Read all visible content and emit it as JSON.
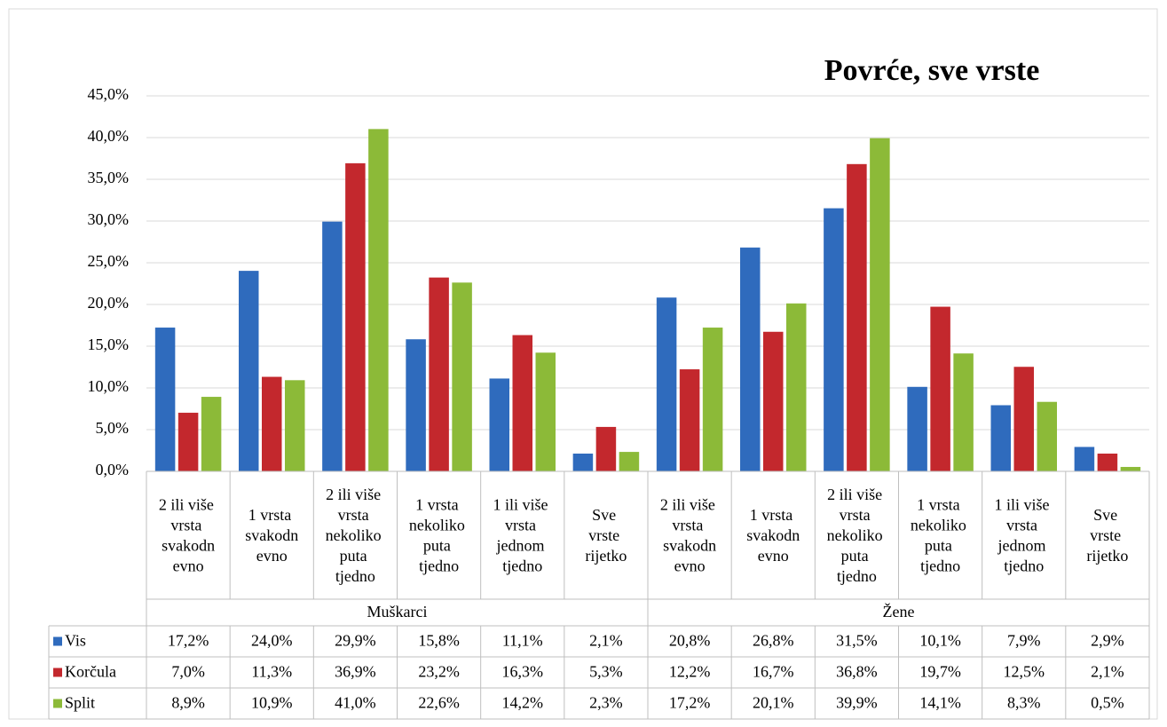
{
  "chart_data": {
    "type": "bar",
    "title": "Povrće, sve vrste",
    "categories": [
      "2 ili više vrsta svakodnevno",
      "1 vrsta svakodnevno",
      "2 ili više vrsta nekoliko puta tjedno",
      "1 vrsta nekoliko puta tjedno",
      "1 ili više vrsta jednom tjedno",
      "Sve vrste rijetko",
      "2 ili više vrsta svakodnevno",
      "1 vrsta svakodnevno",
      "2 ili više vrsta nekoliko puta tjedno",
      "1 vrsta nekoliko puta tjedno",
      "1 ili više vrsta jednom tjedno",
      "Sve vrste rijetko"
    ],
    "groups": [
      "Muškarci",
      "Žene"
    ],
    "series": [
      {
        "name": "Vis",
        "color": "#2f6bbd",
        "values": [
          17.2,
          24.0,
          29.9,
          15.8,
          11.1,
          2.1,
          20.8,
          26.8,
          31.5,
          10.1,
          7.9,
          2.9
        ],
        "value_labels": [
          "17,2%",
          "24,0%",
          "29,9%",
          "15,8%",
          "11,1%",
          "2,1%",
          "20,8%",
          "26,8%",
          "31,5%",
          "10,1%",
          "7,9%",
          "2,9%"
        ]
      },
      {
        "name": "Korčula",
        "color": "#c3282d",
        "values": [
          7.0,
          11.3,
          36.9,
          23.2,
          16.3,
          5.3,
          12.2,
          16.7,
          36.8,
          19.7,
          12.5,
          2.1
        ],
        "value_labels": [
          "7,0%",
          "11,3%",
          "36,9%",
          "23,2%",
          "16,3%",
          "5,3%",
          "12,2%",
          "16,7%",
          "36,8%",
          "19,7%",
          "12,5%",
          "2,1%"
        ]
      },
      {
        "name": "Split",
        "color": "#8cba38",
        "values": [
          8.9,
          10.9,
          41.0,
          22.6,
          14.2,
          2.3,
          17.2,
          20.1,
          39.9,
          14.1,
          8.3,
          0.5
        ],
        "value_labels": [
          "8,9%",
          "10,9%",
          "41,0%",
          "22,6%",
          "14,2%",
          "2,3%",
          "17,2%",
          "20,1%",
          "39,9%",
          "14,1%",
          "8,3%",
          "0,5%"
        ]
      }
    ],
    "ylim": [
      0,
      45
    ],
    "yticks": [
      {
        "value": 0,
        "label": "0,0%"
      },
      {
        "value": 5,
        "label": "5,0%"
      },
      {
        "value": 10,
        "label": "10,0%"
      },
      {
        "value": 15,
        "label": "15,0%"
      },
      {
        "value": 20,
        "label": "20,0%"
      },
      {
        "value": 25,
        "label": "25,0%"
      },
      {
        "value": 30,
        "label": "30,0%"
      },
      {
        "value": 35,
        "label": "35,0%"
      },
      {
        "value": 40,
        "label": "40,0%"
      },
      {
        "value": 45,
        "label": "45,0%"
      }
    ],
    "grid": true
  }
}
